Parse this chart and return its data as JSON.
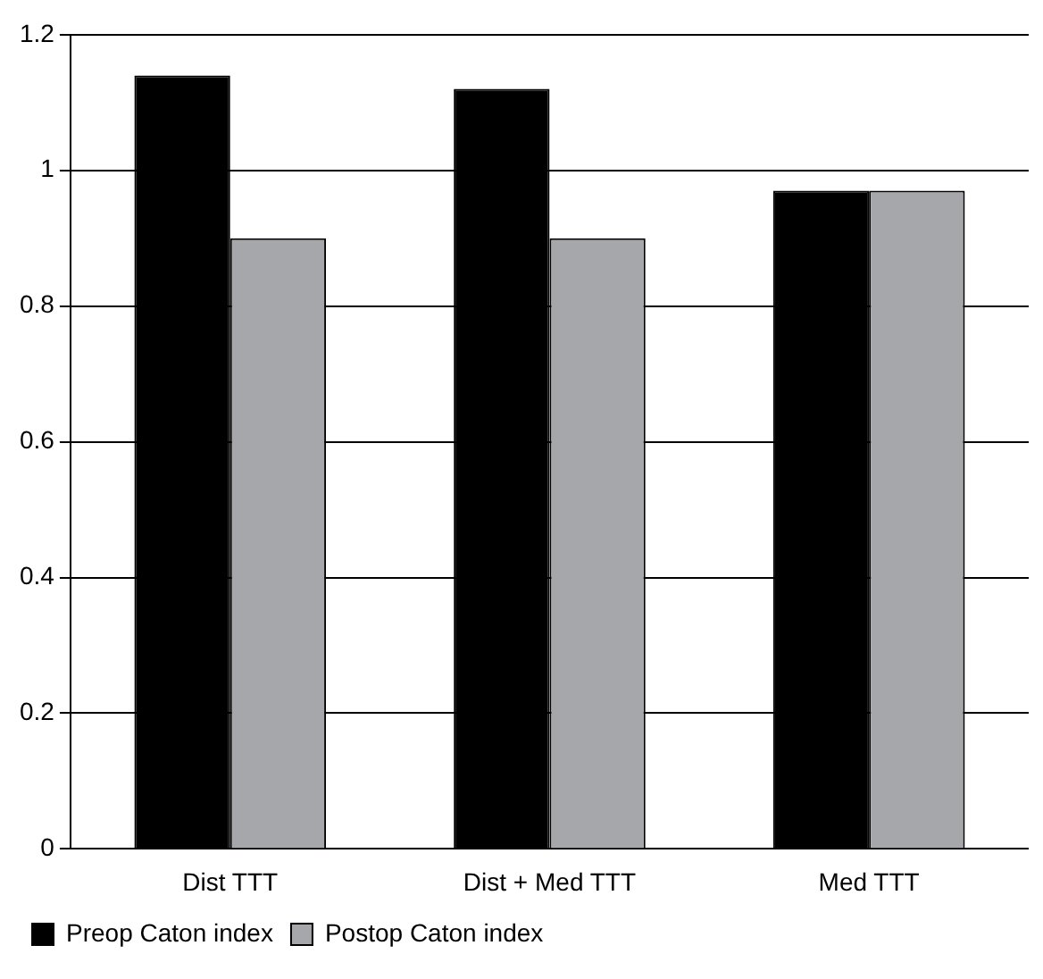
{
  "chart_data": {
    "type": "bar",
    "categories": [
      "Dist TTT",
      "Dist + Med TTT",
      "Med TTT"
    ],
    "series": [
      {
        "name": "Preop Caton index",
        "color": "#000000",
        "values": [
          1.14,
          1.12,
          0.97
        ]
      },
      {
        "name": "Postop Caton index",
        "color": "#a6a7aa",
        "values": [
          0.9,
          0.9,
          0.97
        ]
      }
    ],
    "ylim": [
      0,
      1.2
    ],
    "yticks": [
      0,
      0.2,
      0.4,
      0.6,
      0.8,
      1,
      1.2
    ],
    "grid": "y",
    "legend": "bottom left"
  }
}
